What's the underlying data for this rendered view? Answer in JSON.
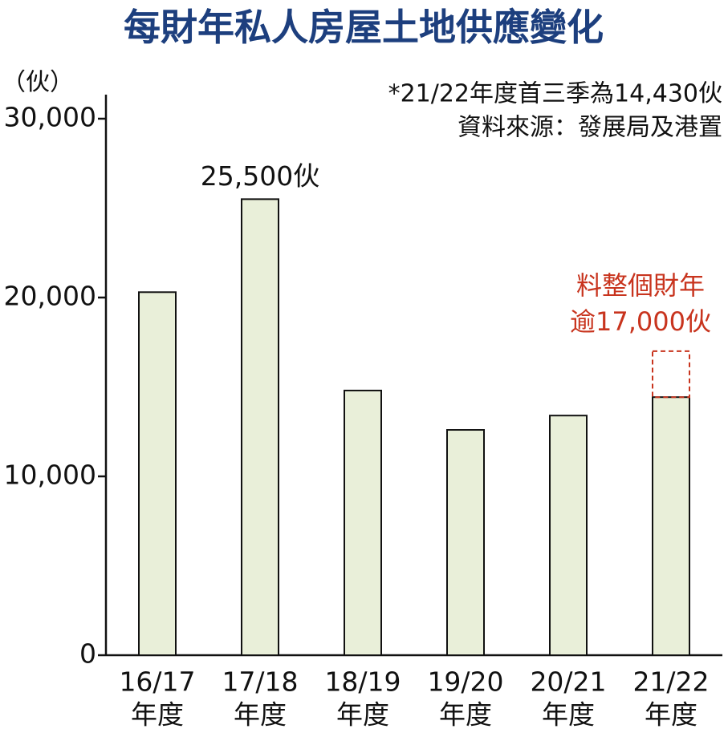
{
  "chart_data": {
    "type": "bar",
    "title": "每財年私人房屋土地供應變化",
    "y_unit": "（伙）",
    "notes": [
      "*21/22年度首三季為14,430伙",
      "資料來源：發展局及港置"
    ],
    "categories": [
      "16/17",
      "17/18",
      "18/19",
      "19/20",
      "20/21",
      "21/22"
    ],
    "category_suffix": "年度",
    "values": [
      20300,
      25500,
      14800,
      12600,
      13400,
      14430
    ],
    "value_labels": [
      null,
      "25,500伙",
      null,
      null,
      null,
      null
    ],
    "color": "#e9efd9",
    "projection": {
      "value": 17000,
      "label": [
        "料整個財年",
        "逾17,000伙"
      ],
      "color": "#c8341e"
    },
    "ylim": [
      0,
      30000
    ],
    "yticks": [
      0,
      {
        "value": 10000,
        "label": "10,000"
      },
      {
        "value": 20000,
        "label": "20,000"
      },
      {
        "value": 30000,
        "label": "30,000"
      }
    ]
  }
}
